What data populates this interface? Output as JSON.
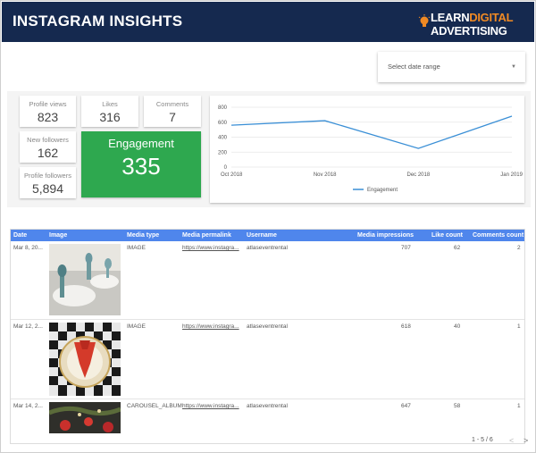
{
  "header": {
    "title": "INSTAGRAM INSIGHTS",
    "logo_line1_a": "LEARN",
    "logo_line1_b": "DIGITAL",
    "logo_line2": "ADVERTISING"
  },
  "date_range": {
    "placeholder": "Select date range"
  },
  "scorecards": {
    "profile_views": {
      "label": "Profile views",
      "value": "823"
    },
    "likes": {
      "label": "Likes",
      "value": "316"
    },
    "comments": {
      "label": "Comments",
      "value": "7"
    },
    "new_followers": {
      "label": "New followers",
      "value": "162"
    },
    "profile_followers": {
      "label": "Profile followers",
      "value": "5,894"
    },
    "engagement": {
      "label": "Engagement",
      "value": "335",
      "color": "#2ea84f"
    }
  },
  "chart_data": {
    "type": "line",
    "x": [
      "Oct 2018",
      "Nov 2018",
      "Dec 2018",
      "Jan 2019"
    ],
    "series": [
      {
        "name": "Engagement",
        "values": [
          560,
          620,
          250,
          680
        ],
        "color": "#3a8fd6"
      }
    ],
    "yticks": [
      "800",
      "600",
      "400",
      "200",
      "0"
    ],
    "ylim": [
      0,
      800
    ],
    "legend": "bottom"
  },
  "table": {
    "headers": [
      "Date",
      "Image",
      "Media type",
      "Media permalink",
      "Username",
      "Media impressions",
      "Like count",
      "Comments count"
    ],
    "rows": [
      {
        "date": "Mar 8, 20...",
        "media_type": "IMAGE",
        "permalink": "https://www.instagra...",
        "username": "atlaseventrental",
        "impressions": "707",
        "likes": "62",
        "comments": "2"
      },
      {
        "date": "Mar 12, 2...",
        "media_type": "IMAGE",
        "permalink": "https://www.instagra...",
        "username": "atlaseventrental",
        "impressions": "618",
        "likes": "40",
        "comments": "1"
      },
      {
        "date": "Mar 14, 2...",
        "media_type": "CAROUSEL_ALBUM",
        "permalink": "https://www.instagra...",
        "username": "atlaseventrental",
        "impressions": "647",
        "likes": "58",
        "comments": "1"
      }
    ],
    "pager": {
      "range": "1 - 5 / 6",
      "prev": "<",
      "next": ">"
    }
  }
}
